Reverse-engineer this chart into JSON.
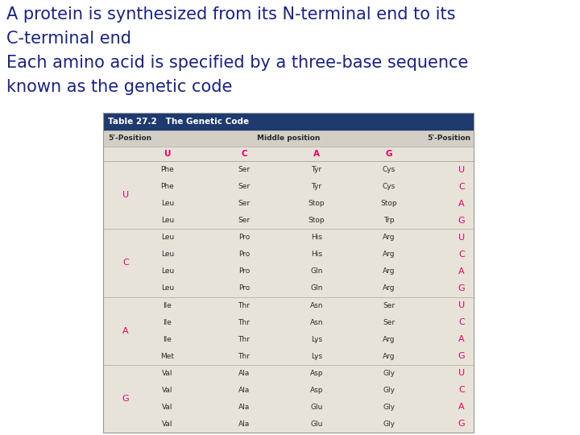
{
  "title_line1": "A protein is synthesized from its N-terminal end to its",
  "title_line2": "C-terminal end",
  "title_line3": "Each amino acid is specified by a three-base sequence",
  "title_line4": "known as the genetic code",
  "title_color": "#1a237e",
  "table_header": "Table 27.2   The Genetic Code",
  "table_header_bg": "#1e3a6e",
  "col_header_bg": "#d4cfc6",
  "table_bg": "#e8e3d8",
  "pink_color": "#e0006a",
  "dark_color": "#2a2a2a",
  "rows": [
    {
      "first": "U",
      "u": "Phe",
      "c": "Ser",
      "a": "Tyr",
      "g": "Cys",
      "third": "U"
    },
    {
      "first": "",
      "u": "Phe",
      "c": "Ser",
      "a": "Tyr",
      "g": "Cys",
      "third": "C"
    },
    {
      "first": "",
      "u": "Leu",
      "c": "Ser",
      "a": "Stop",
      "g": "Stop",
      "third": "A"
    },
    {
      "first": "",
      "u": "Leu",
      "c": "Ser",
      "a": "Stop",
      "g": "Trp",
      "third": "G"
    },
    {
      "first": "C",
      "u": "Leu",
      "c": "Pro",
      "a": "His",
      "g": "Arg",
      "third": "U"
    },
    {
      "first": "",
      "u": "Leu",
      "c": "Pro",
      "a": "His",
      "g": "Arg",
      "third": "C"
    },
    {
      "first": "",
      "u": "Leu",
      "c": "Pro",
      "a": "Gln",
      "g": "Arg",
      "third": "A"
    },
    {
      "first": "",
      "u": "Leu",
      "c": "Pro",
      "a": "Gln",
      "g": "Arg",
      "third": "G"
    },
    {
      "first": "A",
      "u": "Ile",
      "c": "Thr",
      "a": "Asn",
      "g": "Ser",
      "third": "U"
    },
    {
      "first": "",
      "u": "Ile",
      "c": "Thr",
      "a": "Asn",
      "g": "Ser",
      "third": "C"
    },
    {
      "first": "",
      "u": "Ile",
      "c": "Thr",
      "a": "Lys",
      "g": "Arg",
      "third": "A"
    },
    {
      "first": "",
      "u": "Met",
      "c": "Thr",
      "a": "Lys",
      "g": "Arg",
      "third": "G"
    },
    {
      "first": "G",
      "u": "Val",
      "c": "Ala",
      "a": "Asp",
      "g": "Gly",
      "third": "U"
    },
    {
      "first": "",
      "u": "Val",
      "c": "Ala",
      "a": "Asp",
      "g": "Gly",
      "third": "C"
    },
    {
      "first": "",
      "u": "Val",
      "c": "Ala",
      "a": "Glu",
      "g": "Gly",
      "third": "A"
    },
    {
      "first": "",
      "u": "Val",
      "c": "Ala",
      "a": "Glu",
      "g": "Gly",
      "third": "G"
    }
  ]
}
